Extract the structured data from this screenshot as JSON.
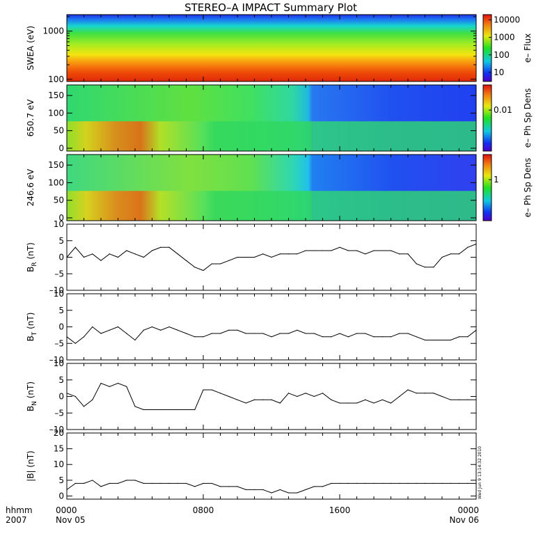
{
  "title": "STEREO–A IMPACT Summary Plot",
  "stamp": "Wed Jun  9 13:14:32 2010",
  "colors": {
    "line": "#000000",
    "background": "#ffffff",
    "frame": "#000000"
  },
  "chart_data": [
    {
      "type": "heatmap",
      "id": "swea",
      "ylabel": "SWEA (eV)",
      "yscale": "log",
      "ylim": [
        90,
        2200
      ],
      "yticks": [
        100,
        1000
      ],
      "yticklabels": [
        "100",
        "1000"
      ],
      "colorbar_label": "e– Flux",
      "colorbar_scale": "log",
      "colorbar_range": [
        3,
        20000
      ],
      "colorbar_ticks": [
        10,
        100,
        1000,
        10000
      ],
      "colorbar_ticklabels": [
        "10",
        "100",
        "1000",
        "10000"
      ]
    },
    {
      "type": "heatmap",
      "id": "pad650",
      "ylabel": "650.7 eV",
      "ylim": [
        -8,
        180
      ],
      "yticks": [
        0,
        50,
        100,
        150
      ],
      "yticklabels": [
        "0",
        "50",
        "100",
        "150"
      ],
      "colorbar_label": "e– Ph Sp Dens",
      "colorbar_scale": "log",
      "colorbar_ticks": [
        0.01
      ],
      "colorbar_ticklabels": [
        "0.01"
      ]
    },
    {
      "type": "heatmap",
      "id": "pad246",
      "ylabel": "246.6 eV",
      "ylim": [
        -8,
        180
      ],
      "yticks": [
        0,
        50,
        100,
        150
      ],
      "yticklabels": [
        "0",
        "50",
        "100",
        "150"
      ],
      "colorbar_label": "e– Ph Sp Dens",
      "colorbar_scale": "log",
      "colorbar_ticks": [
        1
      ],
      "colorbar_ticklabels": [
        "1"
      ]
    },
    {
      "type": "line",
      "id": "br",
      "ylabel": "B",
      "ylabel_sub": "R",
      "ylabel_unit": "(nT)",
      "ylim": [
        -10,
        10
      ],
      "yticks": [
        -10,
        -5,
        0,
        5,
        10
      ],
      "yticklabels": [
        "–10",
        "–5",
        "0",
        "5",
        "10"
      ],
      "x": [
        0,
        0.5,
        1,
        1.5,
        2,
        2.5,
        3,
        3.5,
        4,
        4.5,
        5,
        5.5,
        6,
        6.5,
        7,
        7.5,
        8,
        8.5,
        9,
        9.5,
        10,
        10.5,
        11,
        11.5,
        12,
        12.5,
        13,
        13.5,
        14,
        14.5,
        15,
        15.5,
        16,
        16.5,
        17,
        17.5,
        18,
        18.5,
        19,
        19.5,
        20,
        20.5,
        21,
        21.5,
        22,
        22.5,
        23,
        23.5,
        24
      ],
      "y": [
        0,
        3,
        0,
        1,
        -1,
        1,
        0,
        2,
        1,
        0,
        2,
        3,
        3,
        1,
        -1,
        -3,
        -4,
        -2,
        -2,
        -1,
        0,
        0,
        0,
        1,
        0,
        1,
        1,
        1,
        2,
        2,
        2,
        2,
        3,
        2,
        2,
        1,
        2,
        2,
        2,
        1,
        1,
        -2,
        -3,
        -3,
        0,
        1,
        1,
        3,
        4
      ]
    },
    {
      "type": "line",
      "id": "bt",
      "ylabel": "B",
      "ylabel_sub": "T",
      "ylabel_unit": "(nT)",
      "ylim": [
        -10,
        10
      ],
      "yticks": [
        -10,
        -5,
        0,
        5,
        10
      ],
      "yticklabels": [
        "–10",
        "–5",
        "0",
        "5",
        "10"
      ],
      "x": [
        0,
        0.5,
        1,
        1.5,
        2,
        2.5,
        3,
        3.5,
        4,
        4.5,
        5,
        5.5,
        6,
        6.5,
        7,
        7.5,
        8,
        8.5,
        9,
        9.5,
        10,
        10.5,
        11,
        11.5,
        12,
        12.5,
        13,
        13.5,
        14,
        14.5,
        15,
        15.5,
        16,
        16.5,
        17,
        17.5,
        18,
        18.5,
        19,
        19.5,
        20,
        20.5,
        21,
        21.5,
        22,
        22.5,
        23,
        23.5,
        24
      ],
      "y": [
        -3,
        -5,
        -3,
        0,
        -2,
        -1,
        0,
        -2,
        -4,
        -1,
        0,
        -1,
        0,
        -1,
        -2,
        -3,
        -3,
        -2,
        -2,
        -1,
        -1,
        -2,
        -2,
        -2,
        -3,
        -2,
        -2,
        -1,
        -2,
        -2,
        -3,
        -3,
        -2,
        -3,
        -2,
        -2,
        -3,
        -3,
        -3,
        -2,
        -2,
        -3,
        -4,
        -4,
        -4,
        -4,
        -3,
        -3,
        -1
      ]
    },
    {
      "type": "line",
      "id": "bn",
      "ylabel": "B",
      "ylabel_sub": "N",
      "ylabel_unit": "(nT)",
      "ylim": [
        -10,
        10
      ],
      "yticks": [
        -10,
        -5,
        0,
        5,
        10
      ],
      "yticklabels": [
        "–10",
        "–5",
        "0",
        "5",
        "10"
      ],
      "x": [
        0,
        0.5,
        1,
        1.5,
        2,
        2.5,
        3,
        3.5,
        4,
        4.5,
        5,
        5.5,
        6,
        6.5,
        7,
        7.5,
        8,
        8.5,
        9,
        9.5,
        10,
        10.5,
        11,
        11.5,
        12,
        12.5,
        13,
        13.5,
        14,
        14.5,
        15,
        15.5,
        16,
        16.5,
        17,
        17.5,
        18,
        18.5,
        19,
        19.5,
        20,
        20.5,
        21,
        21.5,
        22,
        22.5,
        23,
        23.5,
        24
      ],
      "y": [
        1,
        0,
        -3,
        -1,
        4,
        3,
        4,
        3,
        -3,
        -4,
        -4,
        -4,
        -4,
        -4,
        -4,
        -4,
        2,
        2,
        1,
        0,
        -1,
        -2,
        -1,
        -1,
        -1,
        -2,
        1,
        0,
        1,
        0,
        1,
        -1,
        -2,
        -2,
        -2,
        -1,
        -2,
        -1,
        -2,
        0,
        2,
        1,
        1,
        1,
        0,
        -1,
        -1,
        -1,
        -1
      ]
    },
    {
      "type": "line",
      "id": "bmag",
      "ylabel": "|B| (nT)",
      "ylim": [
        -1,
        20
      ],
      "yticks": [
        0,
        5,
        10,
        15,
        20
      ],
      "yticklabels": [
        "0",
        "5",
        "10",
        "15",
        "20"
      ],
      "xlabel_row1_left": "hhmm",
      "xlabel_row2_left": "2007",
      "xticks": [
        0,
        8,
        16,
        24
      ],
      "xticklabels": [
        "0000",
        "0800",
        "1600",
        "0000"
      ],
      "xticklabels_row2": [
        "Nov 05",
        "",
        "",
        "Nov 06"
      ],
      "x": [
        0,
        0.5,
        1,
        1.5,
        2,
        2.5,
        3,
        3.5,
        4,
        4.5,
        5,
        5.5,
        6,
        6.5,
        7,
        7.5,
        8,
        8.5,
        9,
        9.5,
        10,
        10.5,
        11,
        11.5,
        12,
        12.5,
        13,
        13.5,
        14,
        14.5,
        15,
        15.5,
        16,
        16.5,
        17,
        17.5,
        18,
        18.5,
        19,
        19.5,
        20,
        20.5,
        21,
        21.5,
        22,
        22.5,
        23,
        23.5,
        24
      ],
      "y": [
        2,
        4,
        4,
        5,
        3,
        4,
        4,
        5,
        5,
        4,
        4,
        4,
        4,
        4,
        4,
        3,
        4,
        4,
        3,
        3,
        3,
        2,
        2,
        2,
        1,
        2,
        1,
        1,
        2,
        3,
        3,
        4,
        4,
        4,
        4,
        4,
        4,
        4,
        4,
        4,
        4,
        4,
        4,
        4,
        4,
        4,
        4,
        4,
        4
      ]
    }
  ]
}
